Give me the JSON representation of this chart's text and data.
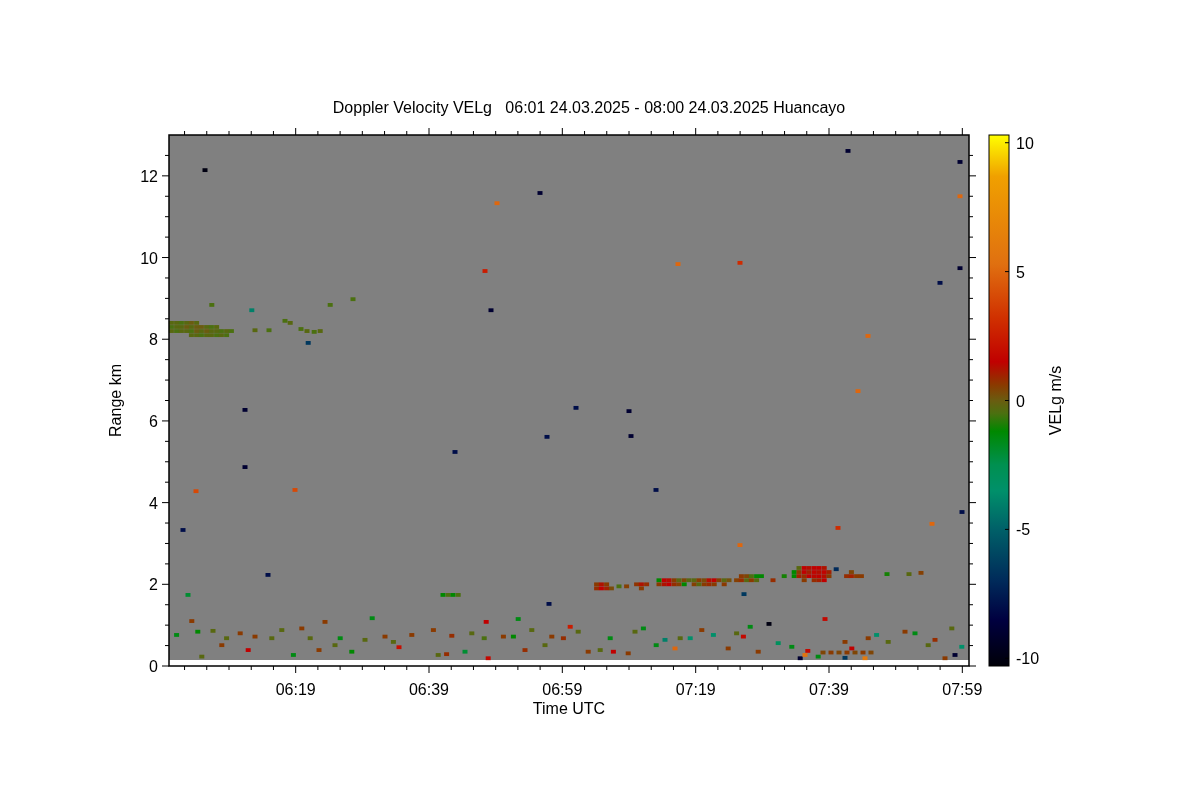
{
  "chart_data": {
    "type": "scatter",
    "title": "Doppler Velocity VELg   06:01 24.03.2025 - 08:00 24.03.2025 Huancayo",
    "xlabel": "Time UTC",
    "ylabel": "Range km",
    "clabel": "VELg m/s",
    "marker": "square",
    "xlim": [
      6,
      8
    ],
    "xticks": [
      {
        "value": 6.0389,
        "label": null
      },
      {
        "value": 6.0944,
        "label": null
      },
      {
        "value": 6.15,
        "label": null
      },
      {
        "value": 6.2056,
        "label": null
      },
      {
        "value": 6.2611,
        "label": null
      },
      {
        "value": 6.3167,
        "label": "06:19"
      },
      {
        "value": 6.3722,
        "label": null
      },
      {
        "value": 6.4278,
        "label": null
      },
      {
        "value": 6.4833,
        "label": null
      },
      {
        "value": 6.5389,
        "label": null
      },
      {
        "value": 6.5944,
        "label": null
      },
      {
        "value": 6.65,
        "label": "06:39"
      },
      {
        "value": 6.7056,
        "label": null
      },
      {
        "value": 6.7611,
        "label": null
      },
      {
        "value": 6.8167,
        "label": null
      },
      {
        "value": 6.8722,
        "label": null
      },
      {
        "value": 6.9278,
        "label": null
      },
      {
        "value": 6.9833,
        "label": "06:59"
      },
      {
        "value": 7.0389,
        "label": null
      },
      {
        "value": 7.0944,
        "label": null
      },
      {
        "value": 7.15,
        "label": null
      },
      {
        "value": 7.2056,
        "label": null
      },
      {
        "value": 7.2611,
        "label": null
      },
      {
        "value": 7.3167,
        "label": "07:19"
      },
      {
        "value": 7.3722,
        "label": null
      },
      {
        "value": 7.4278,
        "label": null
      },
      {
        "value": 7.4833,
        "label": null
      },
      {
        "value": 7.5389,
        "label": null
      },
      {
        "value": 7.5944,
        "label": null
      },
      {
        "value": 7.65,
        "label": "07:39"
      },
      {
        "value": 7.7056,
        "label": null
      },
      {
        "value": 7.7611,
        "label": null
      },
      {
        "value": 7.8167,
        "label": null
      },
      {
        "value": 7.8722,
        "label": null
      },
      {
        "value": 7.9278,
        "label": null
      },
      {
        "value": 7.9833,
        "label": "07:59"
      }
    ],
    "ylim": [
      0,
      13
    ],
    "yticks": [
      0,
      {
        "value": 0.5,
        "label": null
      },
      {
        "value": 1,
        "label": null
      },
      {
        "value": 1.5,
        "label": null
      },
      2,
      {
        "value": 2.5,
        "label": null
      },
      {
        "value": 3,
        "label": null
      },
      {
        "value": 3.5,
        "label": null
      },
      4,
      {
        "value": 4.5,
        "label": null
      },
      {
        "value": 5,
        "label": null
      },
      {
        "value": 5.5,
        "label": null
      },
      6,
      {
        "value": 6.5,
        "label": null
      },
      {
        "value": 7,
        "label": null
      },
      {
        "value": 7.5,
        "label": null
      },
      8,
      {
        "value": 8.5,
        "label": null
      },
      {
        "value": 9,
        "label": null
      },
      {
        "value": 9.5,
        "label": null
      },
      10,
      {
        "value": 10.5,
        "label": null
      },
      {
        "value": 11,
        "label": null
      },
      {
        "value": 11.5,
        "label": null
      },
      12,
      {
        "value": 12.5,
        "label": null
      }
    ],
    "clim": [
      -10.3,
      10.3
    ],
    "cticks": [
      -10,
      -5,
      0,
      5,
      10
    ],
    "series": [
      {
        "x": [
          6.006,
          6.006,
          6.006,
          6.019,
          6.019,
          6.019,
          6.031,
          6.031,
          6.031,
          6.044,
          6.044,
          6.044,
          6.056,
          6.056,
          6.056,
          6.056,
          6.069,
          6.069,
          6.069,
          6.069,
          6.081,
          6.081,
          6.081,
          6.094,
          6.094,
          6.094,
          6.106,
          6.106,
          6.106,
          6.119,
          6.119,
          6.119,
          6.131,
          6.131,
          6.144,
          6.144,
          6.156,
          6.107,
          6.207,
          6.215,
          6.25,
          6.29,
          6.303,
          6.33,
          6.345,
          6.363,
          6.378,
          6.348,
          6.403,
          6.46,
          6.685,
          6.698,
          6.71,
          6.723,
          7.069,
          7.069,
          7.081,
          7.081,
          7.094,
          7.094,
          7.106,
          7.125,
          7.144,
          7.169,
          7.181,
          7.194,
          7.181,
          7.225,
          7.225,
          7.238,
          7.238,
          7.25,
          7.25,
          7.263,
          7.263,
          7.275,
          7.275,
          7.288,
          7.288,
          7.3,
          7.313,
          7.313,
          7.325,
          7.325,
          7.338,
          7.338,
          7.35,
          7.35,
          7.363,
          7.363,
          7.375,
          7.388,
          7.388,
          7.4,
          7.419,
          7.431,
          7.431,
          7.444,
          7.444,
          7.456,
          7.456,
          7.469,
          7.469,
          7.481,
          7.51,
          7.538,
          7.563,
          7.563,
          7.575,
          7.575,
          7.575,
          7.588,
          7.588,
          7.588,
          7.588,
          7.6,
          7.6,
          7.6,
          7.613,
          7.613,
          7.613,
          7.613,
          7.625,
          7.625,
          7.625,
          7.625,
          7.638,
          7.638,
          7.638,
          7.638,
          7.65,
          7.65,
          7.668,
          7.694,
          7.706,
          7.719,
          7.731,
          7.706,
          7.795,
          7.85,
          7.88,
          7.4375,
          6.019,
          6.057,
          6.072,
          6.11,
          6.082,
          6.132,
          6.144,
          6.178,
          6.198,
          6.215,
          6.257,
          6.282,
          6.311,
          6.332,
          6.353,
          6.375,
          6.39,
          6.415,
          6.428,
          6.457,
          6.49,
          6.508,
          6.54,
          6.561,
          6.575,
          6.607,
          6.661,
          6.673,
          6.694,
          6.707,
          6.74,
          6.757,
          6.788,
          6.793,
          6.798,
          6.836,
          6.861,
          6.873,
          6.89,
          6.907,
          6.94,
          6.957,
          6.986,
          7.003,
          7.023,
          7.048,
          7.078,
          7.103,
          7.111,
          7.148,
          7.165,
          7.186,
          7.218,
          7.24,
          7.265,
          7.278,
          7.303,
          7.332,
          7.361,
          7.398,
          7.419,
          7.436,
          7.453,
          7.473,
          7.5,
          7.523,
          7.557,
          7.578,
          7.59,
          7.597,
          7.623,
          7.64,
          7.635,
          7.655,
          7.675,
          7.695,
          7.715,
          7.735,
          7.755,
          7.69,
          7.69,
          7.707,
          7.74,
          7.748,
          7.769,
          7.798,
          7.84,
          7.865,
          7.898,
          7.915,
          7.94,
          7.957,
          7.965,
          7.982,
          6.09,
          6.19,
          6.19,
          6.0675,
          6.315,
          6.035,
          6.2475,
          6.82,
          6.79,
          6.805,
          6.9275,
          7.2725,
          7.4275,
          6.945,
          7.0175,
          7.15,
          7.155,
          7.2175,
          7.4275,
          7.6975,
          7.7475,
          7.6725,
          7.9775,
          7.9775,
          7.9775,
          7.9275,
          7.9825,
          7.9075,
          7.7225,
          6.715,
          6.0475,
          6.95
        ],
        "values": [
          8.4,
          8.3,
          8.2,
          8.4,
          8.3,
          8.2,
          8.4,
          8.3,
          8.2,
          8.4,
          8.3,
          8.2,
          8.4,
          8.3,
          8.2,
          8.1,
          8.4,
          8.3,
          8.2,
          8.1,
          8.3,
          8.2,
          8.1,
          8.3,
          8.2,
          8.1,
          8.3,
          8.2,
          8.1,
          8.3,
          8.2,
          8.1,
          8.2,
          8.1,
          8.2,
          8.1,
          8.2,
          8.84,
          8.71,
          8.22,
          8.22,
          8.45,
          8.4,
          8.25,
          8.2,
          8.18,
          8.2,
          7.91,
          8.84,
          8.98,
          1.74,
          1.74,
          1.74,
          1.74,
          2.0,
          1.9,
          2.0,
          1.9,
          2.0,
          1.9,
          1.9,
          1.95,
          1.95,
          2.0,
          2.0,
          2.0,
          1.9,
          2.1,
          2.0,
          2.1,
          2.0,
          2.1,
          2.0,
          2.1,
          2.0,
          2.1,
          2.0,
          2.1,
          2.0,
          2.1,
          2.1,
          2.0,
          2.1,
          2.0,
          2.1,
          2.0,
          2.1,
          2.0,
          2.1,
          2.0,
          2.1,
          2.1,
          2.0,
          2.1,
          2.1,
          2.2,
          2.1,
          2.2,
          2.1,
          2.2,
          2.1,
          2.2,
          2.1,
          2.2,
          2.1,
          2.2,
          2.3,
          2.2,
          2.4,
          2.3,
          2.2,
          2.4,
          2.3,
          2.2,
          2.1,
          2.4,
          2.3,
          2.2,
          2.4,
          2.3,
          2.2,
          2.1,
          2.4,
          2.3,
          2.2,
          2.1,
          2.4,
          2.3,
          2.2,
          2.1,
          2.3,
          2.2,
          2.37,
          2.2,
          2.2,
          2.2,
          2.2,
          2.3,
          2.25,
          2.25,
          2.28,
          1.76,
          0.76,
          1.1,
          0.84,
          0.86,
          0.23,
          0.51,
          0.68,
          0.8,
          0.39,
          0.72,
          0.68,
          0.88,
          0.27,
          0.92,
          0.68,
          0.39,
          1.08,
          0.51,
          0.68,
          0.35,
          0.64,
          1.17,
          0.72,
          0.59,
          0.46,
          0.76,
          0.88,
          0.27,
          0.29,
          0.74,
          0.35,
          0.8,
          0.68,
          1.08,
          0.19,
          0.72,
          0.72,
          1.15,
          0.39,
          0.88,
          0.51,
          0.72,
          0.68,
          0.96,
          0.84,
          0.35,
          0.39,
          0.68,
          0.35,
          0.31,
          0.84,
          0.92,
          0.51,
          0.64,
          0.43,
          0.68,
          0.68,
          0.88,
          0.76,
          0.43,
          0.8,
          0.72,
          0.96,
          0.35,
          1.03,
          0.56,
          0.47,
          0.19,
          0.27,
          0.37,
          0.23,
          1.15,
          0.33,
          0.33,
          0.33,
          0.33,
          0.33,
          0.33,
          0.33,
          0.59,
          0.2,
          0.43,
          0.19,
          0.68,
          0.76,
          0.59,
          0.84,
          0.8,
          0.51,
          0.64,
          0.19,
          0.92,
          0.27,
          0.47,
          12.14,
          6.27,
          4.87,
          4.28,
          4.31,
          3.33,
          2.23,
          11.33,
          9.67,
          8.71,
          11.58,
          9.84,
          9.87,
          5.61,
          6.32,
          6.24,
          5.63,
          4.31,
          2.96,
          12.61,
          8.08,
          3.38,
          12.34,
          11.5,
          9.74,
          9.38,
          3.77,
          3.48,
          6.73,
          5.24,
          1.74,
          1.52
        ],
        "cvalues": [
          -0.3,
          -0.5,
          -0.3,
          -0.3,
          -0.3,
          -0.5,
          -0.5,
          -0.3,
          -0.3,
          -0.3,
          0,
          -0.3,
          0,
          -0.3,
          -0.5,
          -0.3,
          -0.3,
          0,
          0,
          -0.3,
          0,
          -0.3,
          -0.5,
          -0.3,
          0,
          -0.3,
          -0.5,
          -0.3,
          -0.3,
          -0.3,
          -0.3,
          -0.5,
          -0.5,
          -0.3,
          -0.3,
          -0.5,
          -0.5,
          -0.5,
          -4,
          -0.3,
          -0.5,
          -0.5,
          -0.3,
          -0.5,
          -0.3,
          -0.5,
          -0.3,
          -6.5,
          -0.5,
          -0.5,
          -1.2,
          -0.5,
          -1.2,
          -0.5,
          0.6,
          0.8,
          1.2,
          1.5,
          0.6,
          1.0,
          0.3,
          -0.5,
          0.5,
          0.7,
          1.2,
          0.8,
          0.6,
          -1.2,
          0.6,
          1.5,
          1.2,
          1.3,
          1.5,
          0.6,
          0.8,
          -0.3,
          0.5,
          0.4,
          -1.2,
          -0.3,
          -0.3,
          0.5,
          0.6,
          -0.3,
          0.3,
          0.6,
          1.3,
          0.8,
          1.5,
          0.6,
          0.5,
          -0.3,
          0.6,
          0.2,
          0.5,
          0.6,
          0.8,
          0.4,
          -0.3,
          -0.5,
          0.6,
          -1.2,
          -0.3,
          -1.2,
          0.8,
          -1.0,
          -1.2,
          -1.2,
          -0.3,
          0.6,
          1.0,
          1.5,
          1.5,
          0.8,
          0.6,
          1.3,
          1.0,
          1.5,
          1.5,
          1.6,
          1.4,
          0.8,
          1.5,
          1.3,
          1.5,
          1.0,
          1.2,
          1.6,
          1.3,
          1.5,
          1.0,
          0.6,
          -7,
          0.8,
          1.0,
          0.6,
          0.6,
          0.4,
          -1.0,
          -0.3,
          0.5,
          -6.5,
          -1.5,
          0.6,
          -1.2,
          -0.3,
          -0.3,
          0.6,
          -0.3,
          0.6,
          1.5,
          0.6,
          -0.3,
          -0.3,
          -1.5,
          0.6,
          -0.3,
          0.6,
          0.6,
          -0.3,
          -1.5,
          -1.2,
          -0.3,
          -1.5,
          0.6,
          -0.3,
          2,
          0.6,
          0.6,
          -0.3,
          0.8,
          0.8,
          -2,
          -0.3,
          -0.5,
          1.5,
          1.8,
          0.6,
          -1.2,
          -1.5,
          0.8,
          -0.3,
          -0.3,
          0.6,
          0.8,
          2.5,
          -0.3,
          0.6,
          -0.3,
          -1.5,
          1.5,
          0.6,
          -0.3,
          -1.5,
          -1.5,
          -4,
          5,
          -0.3,
          -3.5,
          0.6,
          -3.5,
          0.6,
          -0.3,
          1.8,
          -1.5,
          0.6,
          -10,
          -3,
          -1.5,
          -9,
          5.5,
          1.8,
          -1.5,
          1.8,
          0.4,
          0.6,
          0.4,
          0.6,
          0.4,
          0.6,
          0.4,
          0.6,
          -6.5,
          1.5,
          6,
          0.6,
          -3.5,
          -0.3,
          0.6,
          -1.5,
          -0.3,
          0.8,
          0.6,
          -0.3,
          -9,
          -3.5,
          -10,
          -9,
          -9,
          4,
          4,
          -8,
          -8,
          5,
          2.5,
          -9,
          -9,
          5,
          3,
          -8,
          -8,
          -9,
          -9,
          -8,
          5,
          -9,
          5,
          3,
          -9,
          5,
          -9,
          -8,
          -8,
          5,
          5,
          -8,
          -2,
          -8
        ]
      }
    ]
  }
}
